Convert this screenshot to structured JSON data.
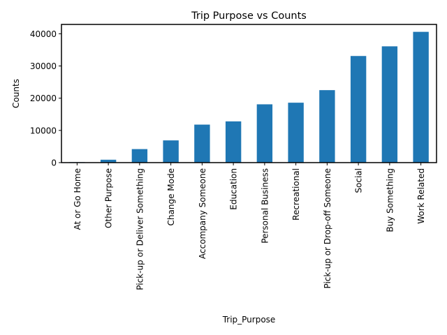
{
  "chart_data": {
    "type": "bar",
    "title": "Trip Purpose vs Counts",
    "xlabel": "Trip_Purpose",
    "ylabel": "Counts",
    "categories": [
      "At or Go Home",
      "Other Purpose",
      "Pick-up or Deliver Something",
      "Change Mode",
      "Accompany Someone",
      "Education",
      "Personal Business",
      "Recreational",
      "Pick-up or Drop-off Someone",
      "Social",
      "Buy Something",
      "Work Related"
    ],
    "values": [
      150,
      900,
      4200,
      6900,
      11800,
      12800,
      18100,
      18600,
      22500,
      33100,
      36100,
      40600
    ],
    "ylim": [
      0,
      42900
    ],
    "yticks": [
      0,
      10000,
      20000,
      30000,
      40000
    ],
    "grid": false,
    "legend": "none",
    "color": "#1f77b4"
  }
}
